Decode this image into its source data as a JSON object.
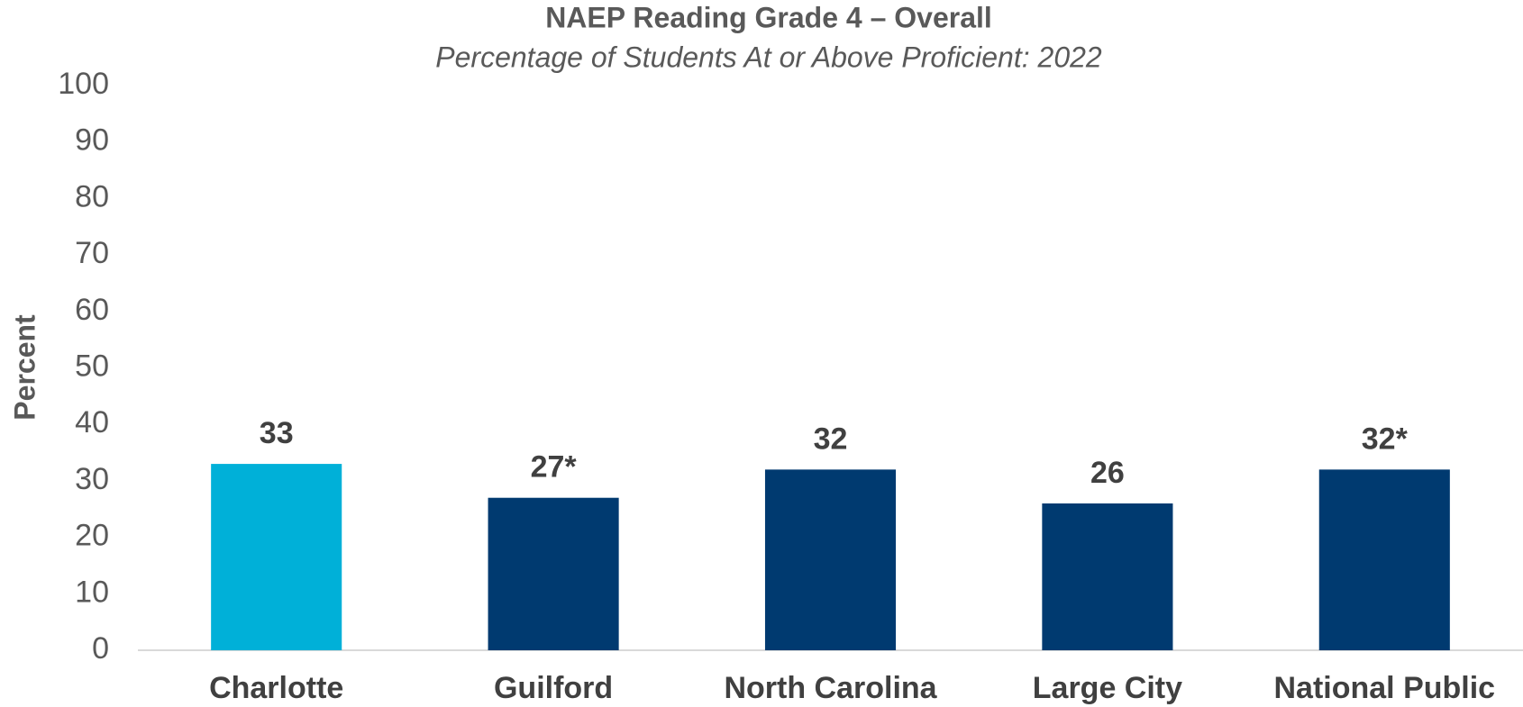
{
  "chart_data": {
    "type": "bar",
    "title": "NAEP Reading Grade 4 – Overall",
    "subtitle": "Percentage of Students At or Above Proficient: 2022",
    "y_label": "Percent",
    "categories": [
      "Charlotte",
      "Guilford",
      "North Carolina",
      "Large City",
      "National Public"
    ],
    "values": [
      33,
      27,
      32,
      26,
      32
    ],
    "value_labels": [
      "33",
      "27*",
      "32",
      "26",
      "32*"
    ],
    "colors": [
      "#00b0d8",
      "#003a70",
      "#003a70",
      "#003a70",
      "#003a70"
    ],
    "ylim": [
      0,
      100
    ],
    "yticks": [
      0,
      10,
      20,
      30,
      40,
      50,
      60,
      70,
      80,
      90,
      100
    ],
    "grid": false
  }
}
